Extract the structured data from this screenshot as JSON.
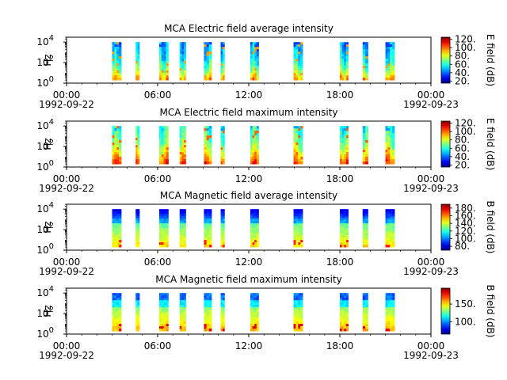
{
  "chart_data": [
    {
      "type": "heatmap",
      "title": "MCA  Electric field average intensity",
      "ylabel": "Hz",
      "y_ticks": [
        {
          "base": "10",
          "exp": "0"
        },
        {
          "base": "10",
          "exp": "2"
        },
        {
          "base": "10",
          "exp": "4"
        }
      ],
      "yscale": "log",
      "ylim": [
        1,
        30000
      ],
      "x_ticks": [
        {
          "time": "00:00",
          "date": "1992-09-22"
        },
        {
          "time": "06:00",
          "date": ""
        },
        {
          "time": "12:00",
          "date": ""
        },
        {
          "time": "18:00",
          "date": ""
        },
        {
          "time": "00:00",
          "date": "1992-09-23"
        }
      ],
      "xlim_hours": [
        0,
        24
      ],
      "colorbar_label": "E field (dB)",
      "colorbar_ticks": [
        "20.",
        "40.",
        "60.",
        "80.",
        "100.",
        "120."
      ],
      "colorbar_range": [
        15,
        125
      ],
      "data_freq_range_hz": [
        2,
        10000
      ],
      "style": "electric-average",
      "segments_hours": [
        [
          3.0,
          3.6
        ],
        [
          4.55,
          4.8
        ],
        [
          6.1,
          6.7
        ],
        [
          7.45,
          7.85
        ],
        [
          9.05,
          9.55
        ],
        [
          10.15,
          10.4
        ],
        [
          12.1,
          12.65
        ],
        [
          14.95,
          15.55
        ],
        [
          18.0,
          18.55
        ],
        [
          19.5,
          19.85
        ],
        [
          21.0,
          21.6
        ]
      ]
    },
    {
      "type": "heatmap",
      "title": "MCA  Electric field maximum intensity",
      "ylabel": "Hz",
      "y_ticks": [
        {
          "base": "10",
          "exp": "0"
        },
        {
          "base": "10",
          "exp": "2"
        },
        {
          "base": "10",
          "exp": "4"
        }
      ],
      "yscale": "log",
      "ylim": [
        1,
        30000
      ],
      "x_ticks": [
        {
          "time": "00:00",
          "date": "1992-09-22"
        },
        {
          "time": "06:00",
          "date": ""
        },
        {
          "time": "12:00",
          "date": ""
        },
        {
          "time": "18:00",
          "date": ""
        },
        {
          "time": "00:00",
          "date": "1992-09-23"
        }
      ],
      "xlim_hours": [
        0,
        24
      ],
      "colorbar_label": "E field (dB)",
      "colorbar_ticks": [
        "20.",
        "40.",
        "60.",
        "80.",
        "100.",
        "120."
      ],
      "colorbar_range": [
        15,
        125
      ],
      "data_freq_range_hz": [
        2,
        10000
      ],
      "style": "electric-maximum",
      "segments_hours": [
        [
          3.0,
          3.6
        ],
        [
          4.55,
          4.8
        ],
        [
          6.1,
          6.7
        ],
        [
          7.45,
          7.85
        ],
        [
          9.05,
          9.55
        ],
        [
          10.15,
          10.4
        ],
        [
          12.1,
          12.65
        ],
        [
          14.95,
          15.55
        ],
        [
          18.0,
          18.55
        ],
        [
          19.5,
          19.85
        ],
        [
          21.0,
          21.6
        ]
      ]
    },
    {
      "type": "heatmap",
      "title": "MCA  Magnetic field average intensity",
      "ylabel": "Hz",
      "y_ticks": [
        {
          "base": "10",
          "exp": "0"
        },
        {
          "base": "10",
          "exp": "2"
        },
        {
          "base": "10",
          "exp": "4"
        }
      ],
      "yscale": "log",
      "ylim": [
        1,
        30000
      ],
      "x_ticks": [
        {
          "time": "00:00",
          "date": "1992-09-22"
        },
        {
          "time": "06:00",
          "date": ""
        },
        {
          "time": "12:00",
          "date": ""
        },
        {
          "time": "18:00",
          "date": ""
        },
        {
          "time": "00:00",
          "date": "1992-09-23"
        }
      ],
      "xlim_hours": [
        0,
        24
      ],
      "colorbar_label": "B field (dB)",
      "colorbar_ticks": [
        "80.",
        "100.",
        "120.",
        "140.",
        "160.",
        "180."
      ],
      "colorbar_range": [
        70,
        190
      ],
      "data_freq_range_hz": [
        2,
        10000
      ],
      "style": "magnetic-average",
      "segments_hours": [
        [
          3.0,
          3.6
        ],
        [
          4.55,
          4.8
        ],
        [
          6.1,
          6.7
        ],
        [
          7.45,
          7.85
        ],
        [
          9.05,
          9.55
        ],
        [
          10.15,
          10.4
        ],
        [
          12.1,
          12.65
        ],
        [
          14.95,
          15.55
        ],
        [
          18.0,
          18.55
        ],
        [
          19.5,
          19.85
        ],
        [
          21.0,
          21.6
        ]
      ]
    },
    {
      "type": "heatmap",
      "title": "MCA  Magnetic field maximum intensity",
      "ylabel": "Hz",
      "y_ticks": [
        {
          "base": "10",
          "exp": "0"
        },
        {
          "base": "10",
          "exp": "2"
        },
        {
          "base": "10",
          "exp": "4"
        }
      ],
      "yscale": "log",
      "ylim": [
        1,
        30000
      ],
      "x_ticks": [
        {
          "time": "00:00",
          "date": "1992-09-22"
        },
        {
          "time": "06:00",
          "date": ""
        },
        {
          "time": "12:00",
          "date": ""
        },
        {
          "time": "18:00",
          "date": ""
        },
        {
          "time": "00:00",
          "date": "1992-09-23"
        }
      ],
      "xlim_hours": [
        0,
        24
      ],
      "colorbar_label": "B field (dB)",
      "colorbar_ticks": [
        "100.",
        "150."
      ],
      "colorbar_tick_values": [
        100,
        150
      ],
      "colorbar_range": [
        65,
        195
      ],
      "data_freq_range_hz": [
        2,
        10000
      ],
      "style": "magnetic-maximum",
      "segments_hours": [
        [
          3.0,
          3.6
        ],
        [
          4.55,
          4.8
        ],
        [
          6.1,
          6.7
        ],
        [
          7.45,
          7.85
        ],
        [
          9.05,
          9.55
        ],
        [
          10.15,
          10.4
        ],
        [
          12.1,
          12.65
        ],
        [
          14.95,
          15.55
        ],
        [
          18.0,
          18.55
        ],
        [
          19.5,
          19.85
        ],
        [
          21.0,
          21.6
        ]
      ]
    }
  ]
}
